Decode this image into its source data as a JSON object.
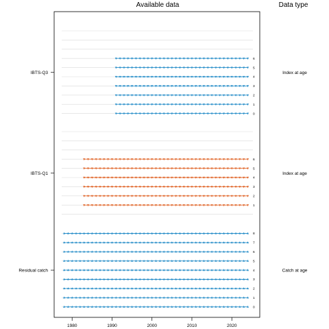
{
  "chart_data": {
    "type": "scatter",
    "title": "Available data",
    "right_title": "Data type",
    "x_ticks": [
      "1980",
      "1990",
      "2000",
      "2010",
      "2020"
    ],
    "x_range": [
      1975.5,
      2027.0
    ],
    "colors": {
      "catch": "#2a8fc9",
      "survey1": "#e0662a",
      "survey3": "#2a8fc9",
      "gridline": "#d9d9d9"
    },
    "groups": [
      {
        "name": "IBTS-Q3",
        "data_type": "Index at age",
        "color": "#2a8fc9",
        "marker": "triangle-down",
        "x_start": 1991,
        "x_end": 2024,
        "ages": [
          "0",
          "1",
          "2",
          "3",
          "4",
          "5",
          "6"
        ],
        "empty_rows": 3
      },
      {
        "name": "IBTS-Q1",
        "data_type": "Index at age",
        "color": "#e0662a",
        "marker": "triangle-down",
        "x_start": 1983,
        "x_end": 2024,
        "ages": [
          "1",
          "2",
          "3",
          "4",
          "5",
          "6"
        ],
        "empty_rows": 3,
        "empty_rows_below": 1
      },
      {
        "name": "Residual catch",
        "data_type": "Catch at age",
        "color": "#2a8fc9",
        "marker": "triangle-up",
        "x_start": 1978,
        "x_end": 2024,
        "ages": [
          "0",
          "1",
          "2",
          "3",
          "4",
          "5",
          "6",
          "7",
          "8"
        ],
        "empty_rows": 0
      }
    ]
  }
}
